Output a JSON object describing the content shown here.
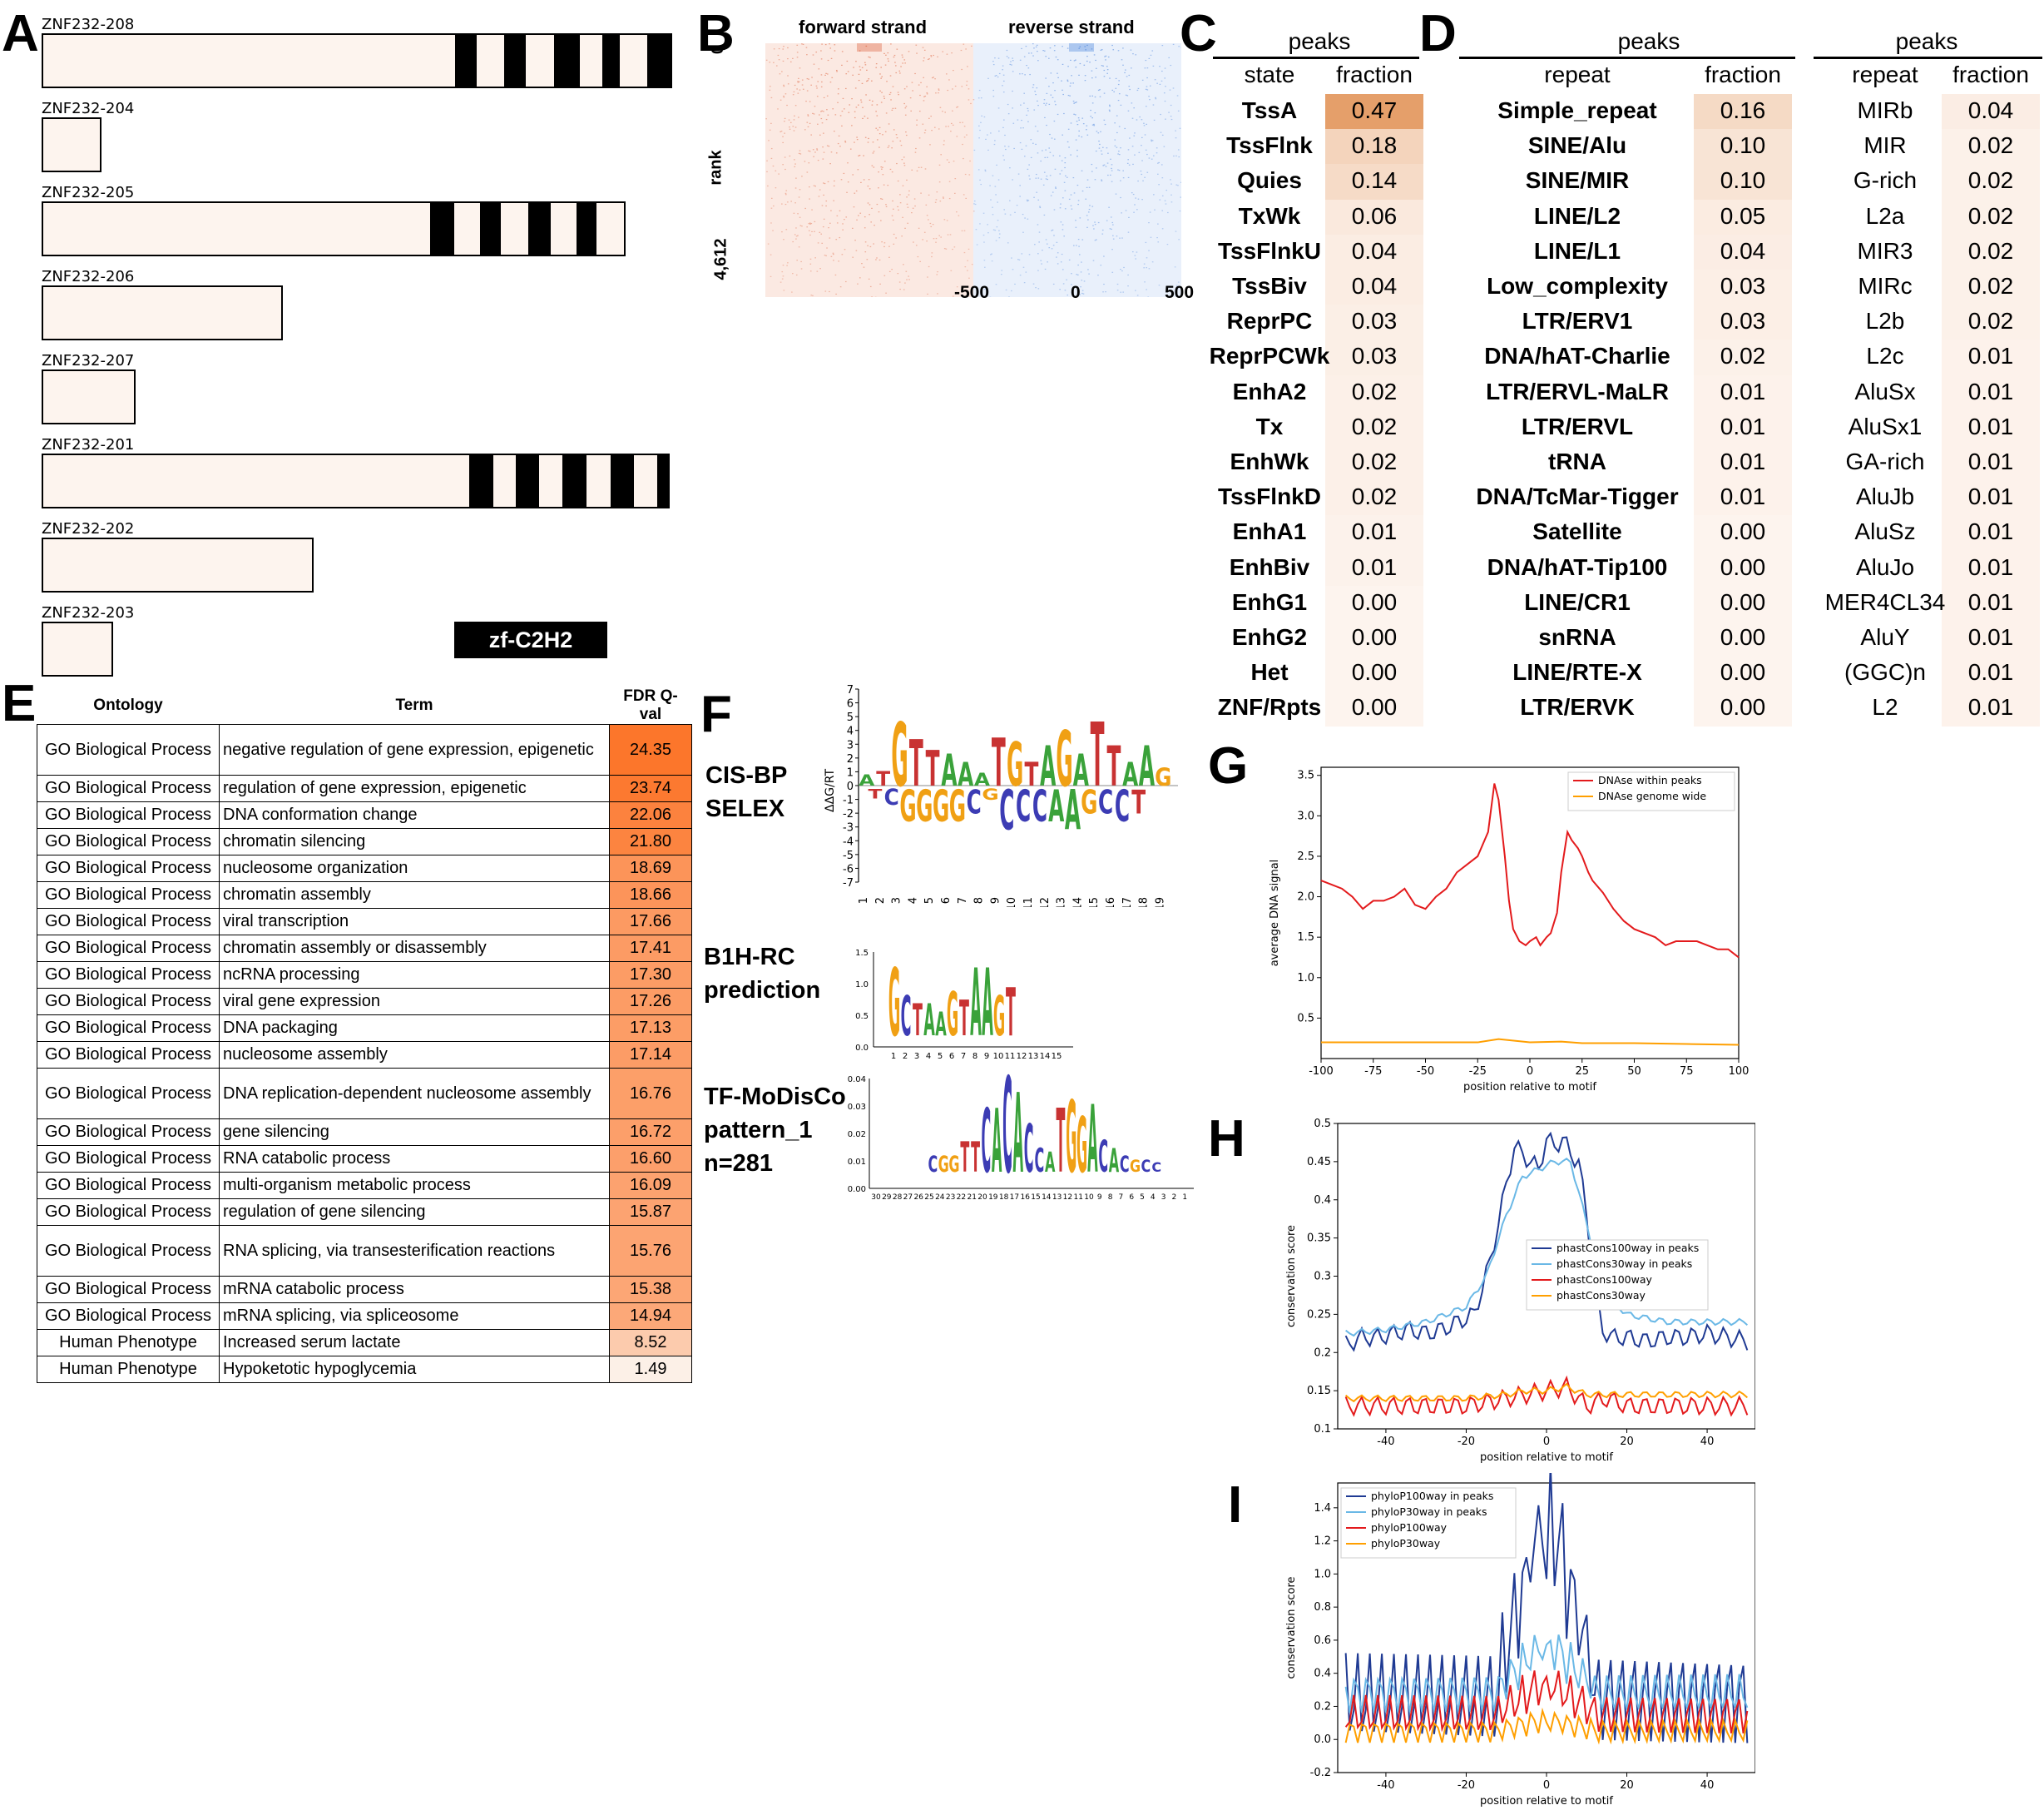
{
  "panel_letters": [
    "A",
    "B",
    "C",
    "D",
    "E",
    "F",
    "G",
    "H",
    "I"
  ],
  "panelA": {
    "transcripts": [
      {
        "name": "ZNF232-208",
        "length": 0.9,
        "zf": [
          0.605,
          0.636,
          0.677,
          0.708,
          0.749,
          0.787,
          0.82,
          0.845,
          0.886,
          0.922
        ]
      },
      {
        "name": "ZNF232-204",
        "length": 0.087,
        "zf": []
      },
      {
        "name": "ZNF232-205",
        "length": 0.854,
        "zf": [
          0.568,
          0.604,
          0.641,
          0.672,
          0.712,
          0.744,
          0.782,
          0.812,
          0.851,
          0.854
        ]
      },
      {
        "name": "ZNF232-206",
        "length": 0.353,
        "zf": []
      },
      {
        "name": "ZNF232-207",
        "length": 0.137,
        "zf": []
      },
      {
        "name": "ZNF232-201",
        "length": 0.918,
        "zf": [
          0.625,
          0.66,
          0.694,
          0.728,
          0.762,
          0.797,
          0.832,
          0.866,
          0.9,
          0.918
        ]
      },
      {
        "name": "ZNF232-202",
        "length": 0.398,
        "zf": []
      },
      {
        "name": "ZNF232-203",
        "length": 0.105,
        "zf": []
      }
    ],
    "legend_label": "zf-C2H2",
    "box_fill": "#fdf4ee"
  },
  "panelB": {
    "left_title": "forward strand",
    "right_title": "reverse strand",
    "ylabel": "rank",
    "y_ticks": [
      "0",
      "4,612"
    ],
    "x_ticks": [
      "-500",
      "0",
      "500"
    ],
    "forward_color": "#d9532b",
    "reverse_color": "#3d7ad9"
  },
  "panelC": {
    "title": "peaks",
    "col1": "state",
    "col2": "fraction",
    "rows": [
      [
        "TssA",
        "0.47"
      ],
      [
        "TssFlnk",
        "0.18"
      ],
      [
        "Quies",
        "0.14"
      ],
      [
        "TxWk",
        "0.06"
      ],
      [
        "TssFlnkU",
        "0.04"
      ],
      [
        "TssBiv",
        "0.04"
      ],
      [
        "ReprPC",
        "0.03"
      ],
      [
        "ReprPCWk",
        "0.03"
      ],
      [
        "EnhA2",
        "0.02"
      ],
      [
        "Tx",
        "0.02"
      ],
      [
        "EnhWk",
        "0.02"
      ],
      [
        "TssFlnkD",
        "0.02"
      ],
      [
        "EnhA1",
        "0.01"
      ],
      [
        "EnhBiv",
        "0.01"
      ],
      [
        "EnhG1",
        "0.00"
      ],
      [
        "EnhG2",
        "0.00"
      ],
      [
        "Het",
        "0.00"
      ],
      [
        "ZNF/Rpts",
        "0.00"
      ]
    ]
  },
  "panelD": {
    "title": "peaks",
    "col1": "repeat",
    "col2": "fraction",
    "rows": [
      [
        "Simple_repeat",
        "0.16"
      ],
      [
        "SINE/Alu",
        "0.10"
      ],
      [
        "SINE/MIR",
        "0.10"
      ],
      [
        "LINE/L2",
        "0.05"
      ],
      [
        "LINE/L1",
        "0.04"
      ],
      [
        "Low_complexity",
        "0.03"
      ],
      [
        "LTR/ERV1",
        "0.03"
      ],
      [
        "DNA/hAT-Charlie",
        "0.02"
      ],
      [
        "LTR/ERVL-MaLR",
        "0.01"
      ],
      [
        "LTR/ERVL",
        "0.01"
      ],
      [
        "tRNA",
        "0.01"
      ],
      [
        "DNA/TcMar-Tigger",
        "0.01"
      ],
      [
        "Satellite",
        "0.00"
      ],
      [
        "DNA/hAT-Tip100",
        "0.00"
      ],
      [
        "LINE/CR1",
        "0.00"
      ],
      [
        "snRNA",
        "0.00"
      ],
      [
        "LINE/RTE-X",
        "0.00"
      ],
      [
        "LTR/ERVK",
        "0.00"
      ]
    ]
  },
  "panelD2": {
    "title": "peaks",
    "col1": "repeat",
    "col2": "fraction",
    "rows": [
      [
        "MIRb",
        "0.04"
      ],
      [
        "MIR",
        "0.02"
      ],
      [
        "G-rich",
        "0.02"
      ],
      [
        "L2a",
        "0.02"
      ],
      [
        "MIR3",
        "0.02"
      ],
      [
        "MIRc",
        "0.02"
      ],
      [
        "L2b",
        "0.02"
      ],
      [
        "L2c",
        "0.01"
      ],
      [
        "AluSx",
        "0.01"
      ],
      [
        "AluSx1",
        "0.01"
      ],
      [
        "GA-rich",
        "0.01"
      ],
      [
        "AluJb",
        "0.01"
      ],
      [
        "AluSz",
        "0.01"
      ],
      [
        "AluJo",
        "0.01"
      ],
      [
        "MER4CL34",
        "0.01"
      ],
      [
        "AluY",
        "0.01"
      ],
      [
        "(GGC)n",
        "0.01"
      ],
      [
        "L2",
        "0.01"
      ]
    ]
  },
  "panelE": {
    "headers": [
      "Ontology",
      "Term",
      "FDR Q-val"
    ],
    "rows": [
      [
        "GO Biological Process",
        "negative regulation of gene expression, epigenetic",
        "24.35"
      ],
      [
        "GO Biological Process",
        "regulation of gene expression, epigenetic",
        "23.74"
      ],
      [
        "GO Biological Process",
        "DNA conformation change",
        "22.06"
      ],
      [
        "GO Biological Process",
        "chromatin silencing",
        "21.80"
      ],
      [
        "GO Biological Process",
        "nucleosome organization",
        "18.69"
      ],
      [
        "GO Biological Process",
        "chromatin assembly",
        "18.66"
      ],
      [
        "GO Biological Process",
        "viral transcription",
        "17.66"
      ],
      [
        "GO Biological Process",
        "chromatin assembly or disassembly",
        "17.41"
      ],
      [
        "GO Biological Process",
        "ncRNA processing",
        "17.30"
      ],
      [
        "GO Biological Process",
        "viral gene expression",
        "17.26"
      ],
      [
        "GO Biological Process",
        "DNA packaging",
        "17.13"
      ],
      [
        "GO Biological Process",
        "nucleosome assembly",
        "17.14"
      ],
      [
        "GO Biological Process",
        "DNA replication-dependent nucleosome assembly",
        "16.76"
      ],
      [
        "GO Biological Process",
        "gene silencing",
        "16.72"
      ],
      [
        "GO Biological Process",
        "RNA catabolic process",
        "16.60"
      ],
      [
        "GO Biological Process",
        "multi-organism metabolic process",
        "16.09"
      ],
      [
        "GO Biological Process",
        "regulation of gene silencing",
        "15.87"
      ],
      [
        "GO Biological Process",
        "RNA splicing, via transesterification reactions",
        "15.76"
      ],
      [
        "GO Biological Process",
        "mRNA catabolic process",
        "15.38"
      ],
      [
        "GO Biological Process",
        "mRNA splicing, via spliceosome",
        "14.94"
      ],
      [
        "Human Phenotype",
        "Increased serum lactate",
        "8.52"
      ],
      [
        "Human Phenotype",
        "Hypoketotic hypoglycemia",
        "1.49"
      ]
    ]
  },
  "panelF": {
    "labels": [
      "CIS-BP\nSELEX",
      "B1H-RC\nprediction",
      "TF-MoDisCo\npattern_1\nn=281"
    ],
    "logo1": {
      "ylabel": "ΔΔG/RT",
      "y_ticks": [
        "7",
        "6",
        "5",
        "4",
        "3",
        "2",
        "1",
        "0",
        "-1",
        "-2",
        "-3",
        "-4",
        "-5",
        "-6",
        "-7"
      ],
      "x_ticks": [
        "1",
        "2",
        "3",
        "4",
        "5",
        "6",
        "7",
        "8",
        "9",
        "10",
        "11",
        "12",
        "13",
        "14",
        "15",
        "16",
        "17",
        "18",
        "19"
      ],
      "top": "ATGTTAAATGTAGATTAAG",
      "bottom": "TCGGGGCGCCCAAGCCT"
    },
    "logo2": {
      "y_ticks": [
        "1.5",
        "1.0",
        "0.5",
        "0.0"
      ],
      "x_ticks": [
        "1",
        "2",
        "3",
        "4",
        "5",
        "6",
        "7",
        "8",
        "9",
        "10",
        "11",
        "12",
        "13",
        "14",
        "15"
      ],
      "top": "GCTAAGTAAGT"
    },
    "logo3": {
      "y_ticks": [
        "0.04",
        "0.03",
        "0.02",
        "0.01",
        "0.00"
      ],
      "x_ticks": [
        "30",
        "29",
        "28",
        "27",
        "26",
        "25",
        "24",
        "23",
        "22",
        "21",
        "20",
        "19",
        "18",
        "17",
        "16",
        "15",
        "14",
        "13",
        "12",
        "11",
        "10",
        "9",
        "8",
        "7",
        "6",
        "5",
        "4",
        "3",
        "2",
        "1"
      ],
      "top": "CGGTTCACACCATGGACACGCC"
    },
    "colors": {
      "A": "#3aa23a",
      "C": "#3c3cb4",
      "G": "#f0a014",
      "T": "#c83232"
    }
  },
  "chart_data": [
    {
      "panel": "G",
      "type": "line",
      "xlabel": "position relative to motif",
      "ylabel": "average DNA signal",
      "xlim": [
        -100,
        100
      ],
      "ylim": [
        0,
        3.6
      ],
      "x_ticks": [
        -100,
        -75,
        -50,
        -25,
        0,
        25,
        50,
        75,
        100
      ],
      "y_ticks": [
        0.5,
        1.0,
        1.5,
        2.0,
        2.5,
        3.0,
        3.5
      ],
      "legend": "top-right",
      "series": [
        {
          "name": "DNAse within peaks",
          "color": "#e31a1c",
          "x": [
            -100,
            -95,
            -90,
            -85,
            -80,
            -75,
            -70,
            -65,
            -60,
            -55,
            -50,
            -45,
            -40,
            -35,
            -30,
            -25,
            -20,
            -17,
            -15,
            -12,
            -10,
            -8,
            -5,
            -2,
            0,
            3,
            5,
            8,
            10,
            13,
            15,
            18,
            20,
            23,
            25,
            28,
            30,
            35,
            40,
            45,
            50,
            55,
            60,
            65,
            70,
            75,
            80,
            85,
            90,
            95,
            100
          ],
          "y": [
            2.2,
            2.15,
            2.1,
            2.0,
            1.85,
            1.95,
            1.95,
            2.0,
            2.1,
            1.9,
            1.85,
            2.0,
            2.1,
            2.3,
            2.4,
            2.5,
            2.8,
            3.4,
            3.2,
            2.5,
            1.95,
            1.6,
            1.45,
            1.4,
            1.45,
            1.5,
            1.4,
            1.5,
            1.55,
            1.8,
            2.3,
            2.8,
            2.7,
            2.6,
            2.5,
            2.3,
            2.2,
            2.05,
            1.85,
            1.7,
            1.6,
            1.55,
            1.5,
            1.4,
            1.45,
            1.45,
            1.45,
            1.4,
            1.35,
            1.35,
            1.25
          ]
        },
        {
          "name": "DNAse genome wide",
          "color": "#ff9f00",
          "x": [
            -100,
            -75,
            -50,
            -25,
            -15,
            0,
            15,
            25,
            50,
            75,
            100
          ],
          "y": [
            0.2,
            0.2,
            0.2,
            0.2,
            0.24,
            0.2,
            0.21,
            0.19,
            0.19,
            0.18,
            0.17
          ]
        }
      ]
    },
    {
      "panel": "H",
      "type": "line",
      "xlabel": "position relative to motif",
      "ylabel": "conservation score",
      "xlim": [
        -52,
        52
      ],
      "ylim": [
        0.1,
        0.5
      ],
      "x_ticks": [
        -40,
        -20,
        0,
        20,
        40
      ],
      "y_ticks": [
        0.1,
        0.15,
        0.2,
        0.25,
        0.3,
        0.35,
        0.4,
        0.45,
        0.5
      ],
      "legend": "center-right",
      "series": [
        {
          "name": "phastCons100way in peaks",
          "color": "#1f3a93",
          "x": [
            -50,
            -46,
            -42,
            -38,
            -34,
            -30,
            -26,
            -22,
            -18,
            -14,
            -10,
            -8,
            -6,
            -4,
            -2,
            0,
            2,
            4,
            6,
            8,
            10,
            12,
            14,
            16,
            20,
            25,
            30,
            35,
            40,
            45,
            50
          ],
          "y": [
            0.21,
            0.22,
            0.22,
            0.225,
            0.23,
            0.225,
            0.23,
            0.24,
            0.25,
            0.32,
            0.42,
            0.47,
            0.46,
            0.45,
            0.44,
            0.48,
            0.47,
            0.48,
            0.46,
            0.45,
            0.38,
            0.28,
            0.23,
            0.22,
            0.22,
            0.215,
            0.22,
            0.22,
            0.225,
            0.22,
            0.215
          ]
        },
        {
          "name": "phastCons30way in peaks",
          "color": "#6ab8e6",
          "x": [
            -50,
            -40,
            -30,
            -20,
            -15,
            -10,
            -6,
            -2,
            2,
            6,
            10,
            14,
            20,
            30,
            40,
            50
          ],
          "y": [
            0.225,
            0.23,
            0.24,
            0.26,
            0.3,
            0.38,
            0.43,
            0.44,
            0.45,
            0.45,
            0.37,
            0.28,
            0.25,
            0.24,
            0.24,
            0.24
          ]
        },
        {
          "name": "phastCons100way",
          "color": "#e31a1c",
          "x": [
            -50,
            -40,
            -30,
            -20,
            -10,
            -5,
            0,
            5,
            10,
            15,
            20,
            30,
            40,
            50
          ],
          "y": [
            0.13,
            0.13,
            0.13,
            0.13,
            0.14,
            0.145,
            0.15,
            0.155,
            0.13,
            0.14,
            0.13,
            0.13,
            0.13,
            0.13
          ]
        },
        {
          "name": "phastCons30way",
          "color": "#ff9f00",
          "x": [
            -50,
            -40,
            -30,
            -20,
            -10,
            -5,
            0,
            5,
            10,
            15,
            20,
            30,
            40,
            50
          ],
          "y": [
            0.14,
            0.14,
            0.14,
            0.14,
            0.145,
            0.15,
            0.15,
            0.155,
            0.145,
            0.145,
            0.145,
            0.145,
            0.145,
            0.145
          ]
        }
      ]
    },
    {
      "panel": "I",
      "type": "line",
      "xlabel": "position relative to motif",
      "ylabel": "conservation score",
      "xlim": [
        -52,
        52
      ],
      "ylim": [
        -0.2,
        1.55
      ],
      "x_ticks": [
        -40,
        -20,
        0,
        20,
        40
      ],
      "y_ticks": [
        -0.2,
        0.0,
        0.2,
        0.4,
        0.6,
        0.8,
        1.0,
        1.2,
        1.4
      ],
      "legend": "top-left",
      "series": [
        {
          "name": "phyloP100way in peaks",
          "color": "#1f3a93",
          "amp": 0.28,
          "base": 0.25,
          "peak": 1.45
        },
        {
          "name": "phyloP30way in peaks",
          "color": "#6ab8e6",
          "amp": 0.12,
          "base": 0.28,
          "peak": 0.6
        },
        {
          "name": "phyloP100way",
          "color": "#e31a1c",
          "amp": 0.12,
          "base": 0.15,
          "peak": 0.35
        },
        {
          "name": "phyloP30way",
          "color": "#ff9f00",
          "amp": 0.07,
          "base": 0.05,
          "peak": 0.12
        }
      ]
    }
  ]
}
